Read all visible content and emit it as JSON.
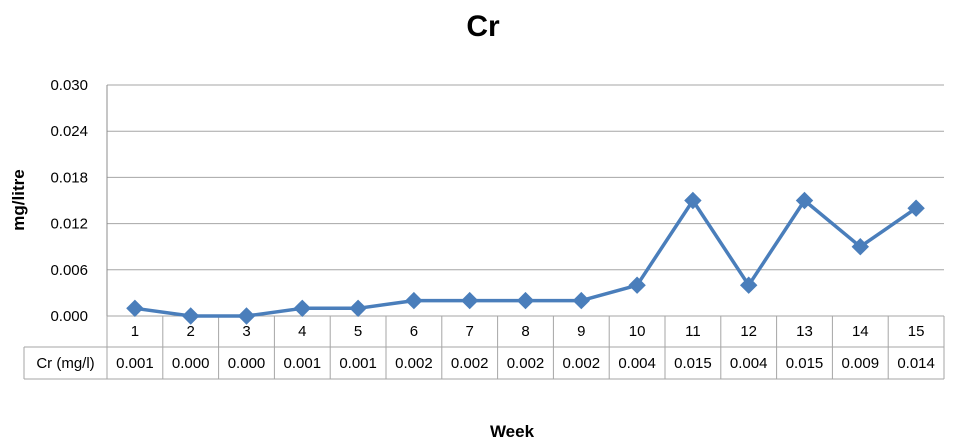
{
  "chart_data": {
    "type": "line",
    "title": "Cr",
    "xlabel": "Week",
    "ylabel": "mg/litre",
    "ylim": [
      0,
      0.03
    ],
    "yticks": [
      "0.000",
      "0.006",
      "0.012",
      "0.018",
      "0.024",
      "0.030"
    ],
    "grid": true,
    "categories": [
      "1",
      "2",
      "3",
      "4",
      "5",
      "6",
      "7",
      "8",
      "9",
      "10",
      "11",
      "12",
      "13",
      "14",
      "15"
    ],
    "series": [
      {
        "name": "Cr (mg/l)",
        "color": "#4a7ebb",
        "marker": "diamond",
        "values": [
          0.001,
          0.0,
          0.0,
          0.001,
          0.001,
          0.002,
          0.002,
          0.002,
          0.002,
          0.004,
          0.015,
          0.004,
          0.015,
          0.009,
          0.014
        ],
        "labels": [
          "0.001",
          "0.000",
          "0.000",
          "0.001",
          "0.001",
          "0.002",
          "0.002",
          "0.002",
          "0.002",
          "0.004",
          "0.015",
          "0.004",
          "0.015",
          "0.009",
          "0.014"
        ]
      }
    ],
    "data_table": true
  }
}
